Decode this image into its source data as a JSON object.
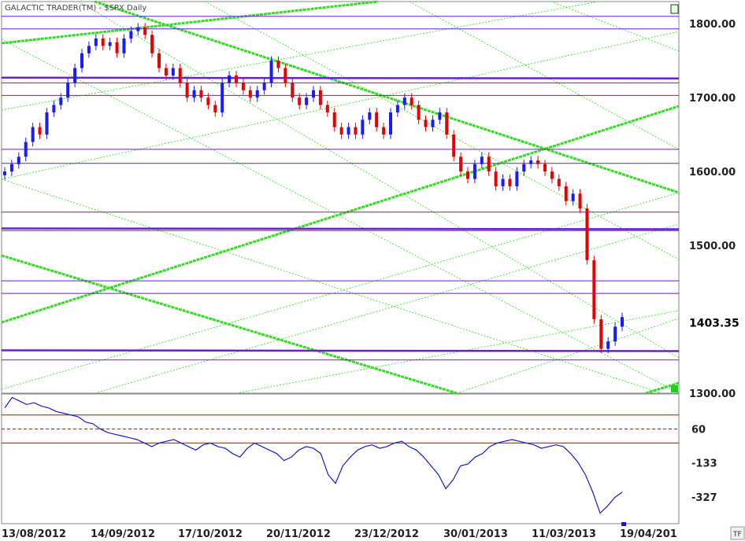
{
  "window": {
    "title": "GALACTIC TRADER(TM) - $SPX Daily",
    "tf_button": "TF"
  },
  "colors": {
    "bg": "#ffffff",
    "up_candle": "#1a1aff",
    "down_candle": "#e60000",
    "gann_bold": "#33dd22",
    "gann_thin": "#44ee33",
    "level_line": "#6a1fd0",
    "osc_line": "#1a1acc",
    "osc_bands": "#cc0000",
    "corner_marker": "#22cc22"
  },
  "chart_data": [
    {
      "type": "candlestick",
      "title": "GALACTIC TRADER(TM) - $SPX Daily",
      "ylim": [
        1300,
        1830
      ],
      "y_ticks": [
        "1800.00",
        "1700.00",
        "1600.00",
        "1500.00",
        "1300.00"
      ],
      "last_price": "1403.35",
      "x_ticks": [
        "13/08/2012",
        "14/09/2012",
        "17/10/2012",
        "20/11/2012",
        "23/12/2012",
        "30/01/2013",
        "11/03/2013",
        "19/04/201"
      ],
      "horizontal_levels": [
        1810,
        1793,
        1727,
        1720,
        1703,
        1630,
        1611,
        1545,
        1523,
        1520,
        1452,
        1435,
        1358,
        1345
      ],
      "close_estimates": [
        1600,
        1610,
        1620,
        1640,
        1660,
        1650,
        1680,
        1690,
        1700,
        1720,
        1740,
        1760,
        1770,
        1780,
        1770,
        1775,
        1760,
        1780,
        1790,
        1795,
        1785,
        1760,
        1740,
        1730,
        1740,
        1720,
        1700,
        1710,
        1700,
        1690,
        1680,
        1720,
        1730,
        1720,
        1710,
        1700,
        1710,
        1720,
        1750,
        1740,
        1720,
        1700,
        1690,
        1700,
        1710,
        1690,
        1680,
        1660,
        1650,
        1660,
        1650,
        1670,
        1680,
        1660,
        1650,
        1680,
        1690,
        1700,
        1690,
        1670,
        1660,
        1670,
        1680,
        1650,
        1620,
        1600,
        1590,
        1610,
        1620,
        1600,
        1580,
        1590,
        1580,
        1600,
        1610,
        1615,
        1610,
        1600,
        1590,
        1580,
        1560,
        1570,
        1550,
        1480,
        1400,
        1360,
        1370,
        1390,
        1403
      ]
    },
    {
      "type": "line",
      "title": "",
      "ylim": [
        -480,
        260
      ],
      "y_ticks": [
        "60",
        "-133",
        "-327"
      ],
      "bands": [
        140,
        60,
        -20
      ],
      "values": [
        180,
        240,
        220,
        200,
        210,
        190,
        180,
        160,
        150,
        140,
        130,
        100,
        90,
        60,
        40,
        30,
        20,
        10,
        0,
        -20,
        -40,
        -20,
        -10,
        0,
        -20,
        -40,
        -60,
        -30,
        -20,
        -40,
        -50,
        -80,
        -100,
        -50,
        -20,
        -40,
        -60,
        -80,
        -120,
        -100,
        -60,
        -40,
        -50,
        -80,
        -200,
        -250,
        -150,
        -100,
        -60,
        -40,
        -30,
        -50,
        -40,
        -20,
        -10,
        -40,
        -60,
        -100,
        -150,
        -200,
        -280,
        -230,
        -150,
        -140,
        -100,
        -80,
        -40,
        -20,
        -10,
        0,
        -10,
        -20,
        -30,
        -50,
        -40,
        -30,
        -40,
        -80,
        -130,
        -200,
        -300,
        -420,
        -380,
        -330,
        -300
      ]
    }
  ]
}
